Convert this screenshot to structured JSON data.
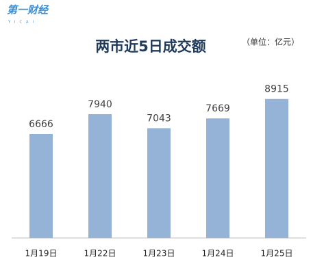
{
  "logo": {
    "name": "第一财经",
    "sub": "YICAI"
  },
  "chart_data": {
    "type": "bar",
    "title": "两市近5日成交额",
    "unit": "（单位：亿元）",
    "categories": [
      "1月19日",
      "1月22日",
      "1月23日",
      "1月24日",
      "1月25日"
    ],
    "values": [
      6666,
      7940,
      7043,
      7669,
      8915
    ],
    "color": "#95b3d7",
    "ylim": [
      0,
      10000
    ],
    "grid": false
  }
}
